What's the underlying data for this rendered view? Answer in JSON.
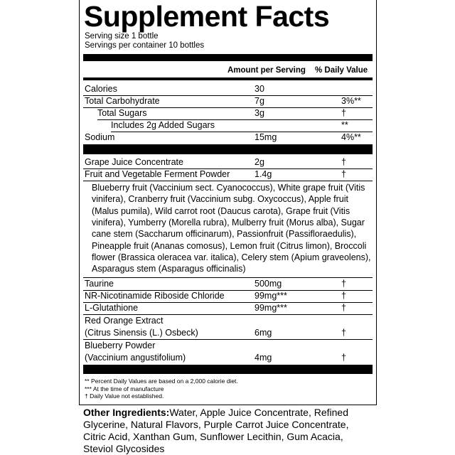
{
  "header": {
    "title": "Supplement Facts",
    "serving_size": "Serving size 1 bottle",
    "servings_per_container": "Servings per container 10 bottles"
  },
  "table": {
    "column_headers": [
      "Amount per Serving",
      "% Daily Value"
    ],
    "rows": [
      {
        "name": [
          "Calories"
        ],
        "amount": "30"
      },
      {
        "name": [
          "Total Carbohydrate"
        ],
        "amount": "7g",
        "daily_value": "3%**"
      },
      {
        "name": [
          "Total Sugars"
        ],
        "amount": "3g",
        "daily_value": "†"
      },
      {
        "name": [
          "Includes 2g Added Sugars"
        ],
        "daily_value": "**"
      },
      {
        "name": [
          "Sodium"
        ],
        "amount": "15mg",
        "daily_value": "4%**"
      },
      {
        "name": [
          "Grape Juice Concentrate"
        ],
        "amount": "2g",
        "daily_value": "†"
      },
      {
        "name": [
          "Fruit and Vegetable Ferment Powder"
        ],
        "amount": "1.4g",
        "daily_value": "†"
      },
      {
        "name": [
          "Taurine"
        ],
        "amount": "500mg",
        "daily_value": "†"
      },
      {
        "name": [
          "NR-Nicotinamide Riboside Chloride"
        ],
        "amount": "99mg***",
        "daily_value": "†"
      },
      {
        "name": [
          "L-Glutathione"
        ],
        "amount": "99mg***",
        "daily_value": "†"
      },
      {
        "name": [
          "Red Orange Extract",
          "(Citrus Sinensis (L.) Osbeck)"
        ],
        "amount": "6mg",
        "daily_value": "†"
      },
      {
        "name": [
          "Blueberry Powder",
          "(Vaccinium angustifolium)"
        ],
        "amount": "4mg",
        "daily_value": "†"
      }
    ],
    "blend_ingredients": [
      "Blueberry fruit (Vaccinium sect. Cyanococcus), White grape fruit (Vitis",
      "vinifera), Cranberry fruit (Vaccinium subg. Oxycoccus), Apple fruit",
      "(Malus pumila), Wild carrot root (Daucus carota), Grape fruit (Vitis",
      "vinifera), Yumberry (Morella rubra), Mulberry fruit (Morus alba), Sugar",
      "cane stem (Saccharum officinarum), Passionfruit (Passifloraedulis),",
      "Pineapple fruit (Ananas comosus), Lemon fruit (Citrus limon), Broccoli",
      "flower (Brassica oleracea var. italica), Celery stem (Apium graveolens),",
      "Asparagus stem (Asparagus officinalis)"
    ]
  },
  "footnotes": [
    "** Percent Daily Values are based on a 2,000 calorie diet.",
    "*** At the time of manufacture",
    "† Daily Value not established."
  ],
  "other_ingredients": {
    "label": "Other Ingredients:",
    "text": "Water, Apple Juice Concentrate, Refined Glycerine, Natural Flavors, Purple Carrot Juice Concentrate, Citric Acid, Xanthan Gum, Sunflower Lecithin, Gum Acacia, Steviol Glycosides"
  }
}
